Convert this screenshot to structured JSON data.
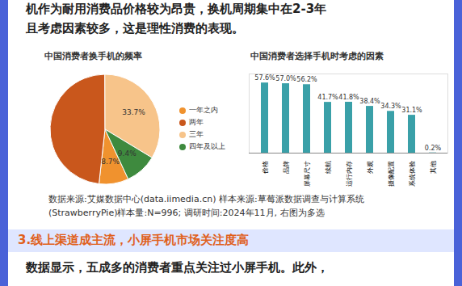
{
  "header": {
    "lines": [
      "机作为耐用消费品价格较为昂贵，换机周期集中在2-3年",
      "且考虑因素较多，这是理性消费的表现。"
    ]
  },
  "chart_data": [
    {
      "type": "pie",
      "title": "中国消费者换手机的频率",
      "categories": [
        "一年之内",
        "两年",
        "三年",
        "四年及以上"
      ],
      "values": [
        8.7,
        48.2,
        33.7,
        9.4
      ],
      "value_labels": [
        "8.7%",
        null,
        "33.7%",
        "9.4%"
      ],
      "colors": [
        "#f0922e",
        "#c9571c",
        "#f7c48a",
        "#3e8a3e"
      ],
      "legend": "right",
      "data_labels": true
    },
    {
      "type": "bar",
      "title": "中国消费者选择手机时考虑的因素",
      "categories": [
        "价格",
        "品牌",
        "屏幕尺寸",
        "续航",
        "运行内存",
        "外观",
        "摄像配置",
        "系统体验",
        "其他"
      ],
      "values": [
        57.6,
        57.0,
        56.2,
        41.7,
        41.8,
        38.4,
        34.3,
        31.1,
        0.2
      ],
      "value_labels": [
        "57.6%",
        "57.0%",
        "56.2%",
        "41.7%",
        "41.8%",
        "38.4%",
        "34.3%",
        "31.1%",
        "0.2%"
      ],
      "color": "#3aa0a8",
      "ylim": [
        0,
        65
      ],
      "yticks": [],
      "tick_labels": "x",
      "data_labels": true
    }
  ],
  "footer": {
    "source": "数据来源:艾媒数据中心(data.iimedia.cn) 样本来源:草莓派数据调查与计算系统(StrawberryPie)样本量:N=996; 调研时间:2024年11月, 右图为多选",
    "heading": "3.线上渠道成主流，小屏手机市场关注度高",
    "body": "数据显示，五成多的消费者重点关注过小屏手机。此外，"
  }
}
